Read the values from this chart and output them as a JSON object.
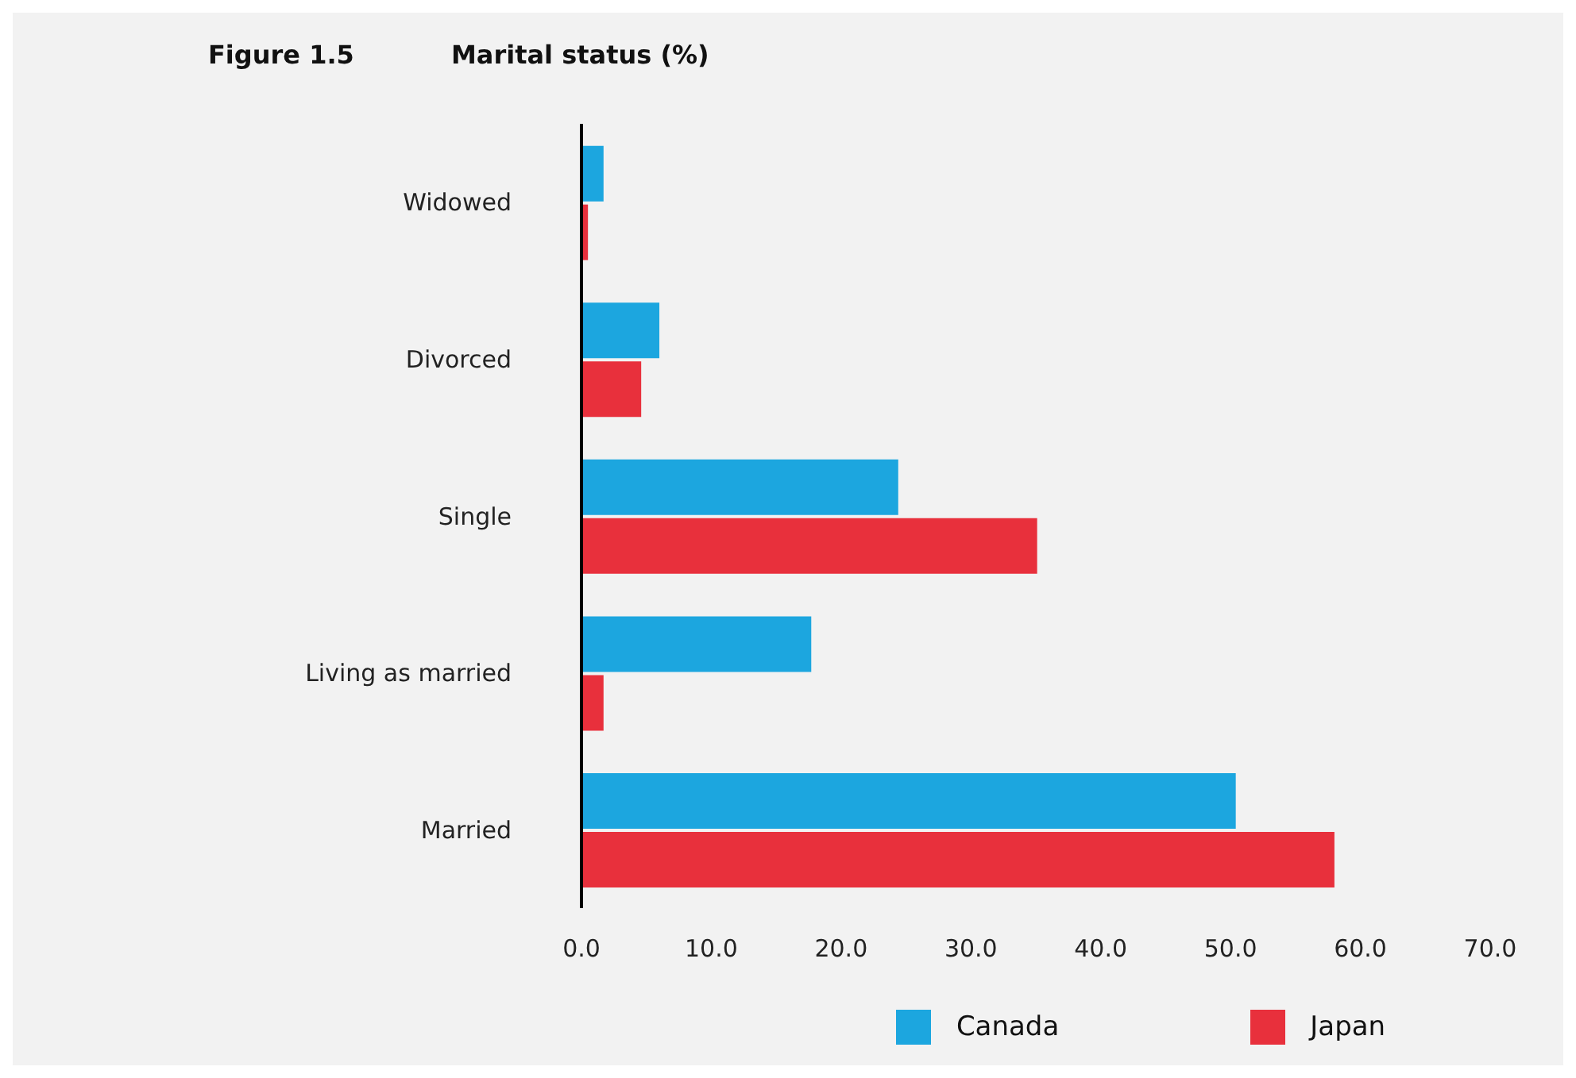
{
  "chart_data": {
    "type": "bar",
    "orientation": "horizontal",
    "title": "Figure 1.5",
    "subtitle": "Marital status (%)",
    "categories": [
      "Widowed",
      "Divorced",
      "Single",
      "Living as married",
      "Married"
    ],
    "series": [
      {
        "name": "Canada",
        "color": "#1ca6df",
        "values": [
          1.7,
          6.0,
          24.4,
          17.7,
          50.4
        ]
      },
      {
        "name": "Japan",
        "color": "#e8303c",
        "values": [
          0.5,
          4.6,
          35.1,
          1.7,
          58.0
        ]
      }
    ],
    "xlim": [
      0,
      70
    ],
    "xticks": [
      {
        "value": 0,
        "label": "0.0"
      },
      {
        "value": 10,
        "label": "10.0"
      },
      {
        "value": 20,
        "label": "20.0"
      },
      {
        "value": 30,
        "label": "30.0"
      },
      {
        "value": 40,
        "label": "40.0"
      },
      {
        "value": 50,
        "label": "50.0"
      },
      {
        "value": 60,
        "label": "60.0"
      },
      {
        "value": 70,
        "label": "70.0"
      }
    ],
    "grid": false,
    "legend": "bottom"
  }
}
